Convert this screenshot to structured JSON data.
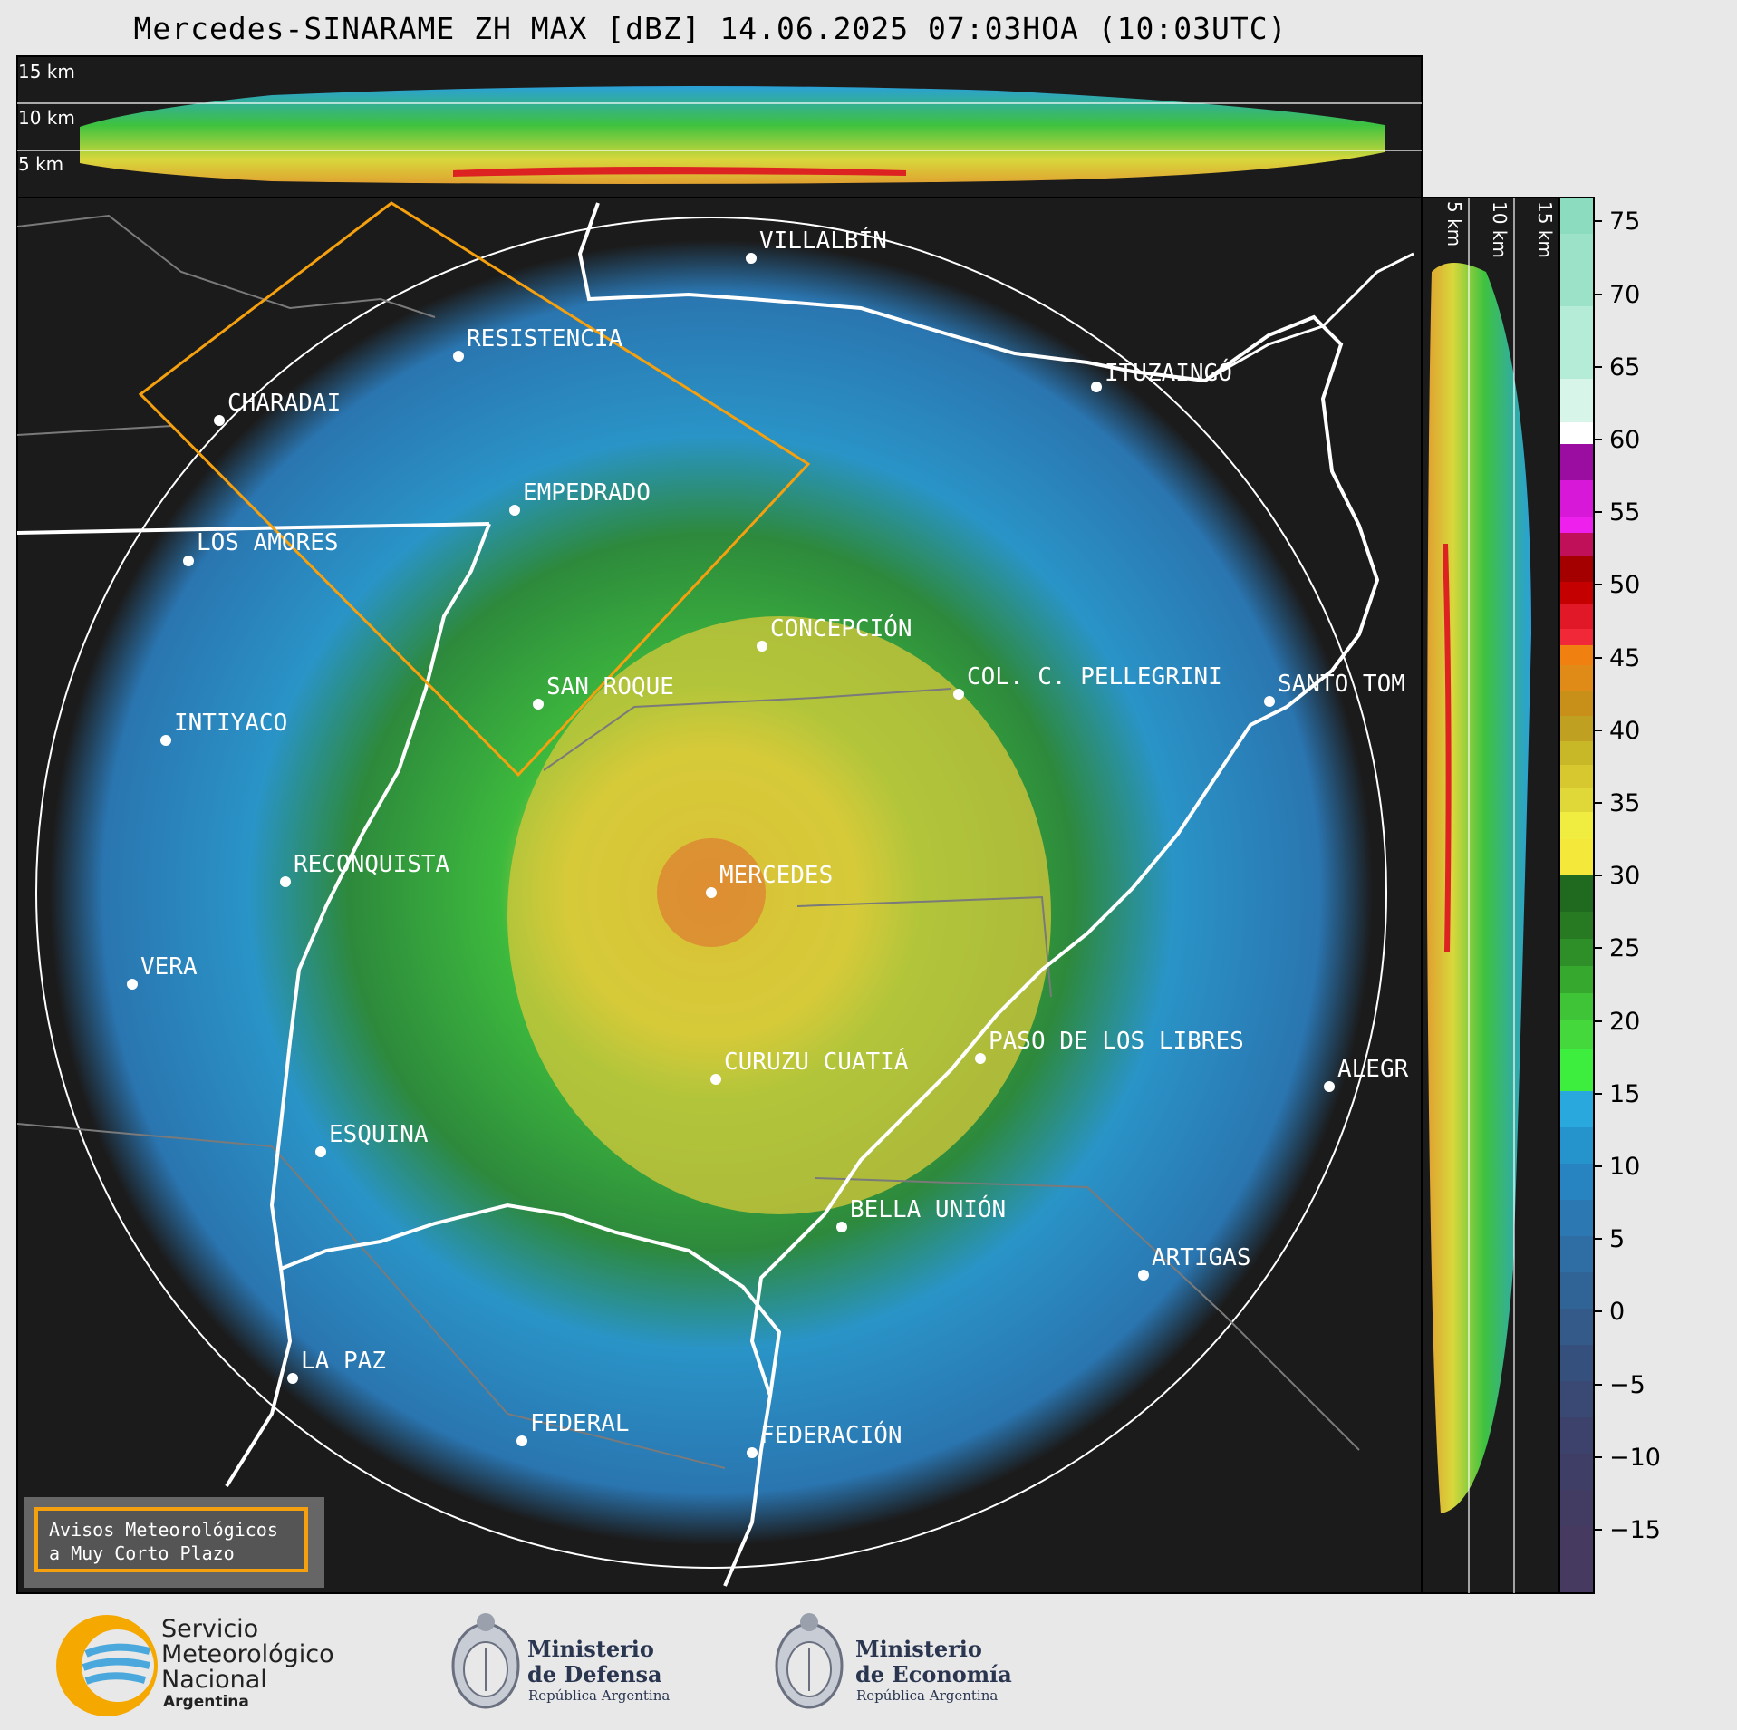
{
  "title": "Mercedes-SINARAME ZH MAX [dBZ] 14.06.2025 07:03HOA (10:03UTC)",
  "cross_sections": {
    "top_labels": [
      "15 km",
      "10 km",
      "5 km"
    ],
    "side_labels": [
      "5 km",
      "10 km",
      "15 km"
    ]
  },
  "cities": [
    {
      "name": "VILLALBÍN"
    },
    {
      "name": "RESISTENCIA"
    },
    {
      "name": "CHARADAI"
    },
    {
      "name": "ITUZAINGÓ"
    },
    {
      "name": "EMPEDRADO"
    },
    {
      "name": "LOS AMORES"
    },
    {
      "name": "CONCEPCIÓN"
    },
    {
      "name": "SAN ROQUE"
    },
    {
      "name": "COL. C. PELLEGRINI"
    },
    {
      "name": "SANTO TOM"
    },
    {
      "name": "INTIYACO"
    },
    {
      "name": "MERCEDES"
    },
    {
      "name": "RECONQUISTA"
    },
    {
      "name": "VERA"
    },
    {
      "name": "PASO DE LOS LIBRES"
    },
    {
      "name": "CURUZU CUATIÁ"
    },
    {
      "name": "ALEGR"
    },
    {
      "name": "ESQUINA"
    },
    {
      "name": "BELLA UNIÓN"
    },
    {
      "name": "ARTIGAS"
    },
    {
      "name": "LA PAZ"
    },
    {
      "name": "FEDERAL"
    },
    {
      "name": "FEDERACIÓN"
    }
  ],
  "colorbar": {
    "ticks": [
      "75",
      "70",
      "65",
      "60",
      "55",
      "50",
      "45",
      "40",
      "35",
      "30",
      "25",
      "20",
      "15",
      "10",
      "5",
      "0",
      "−5",
      "−10",
      "−15"
    ]
  },
  "warning_box": {
    "line1": "Avisos Meteorológicos",
    "line2": "a Muy Corto Plazo"
  },
  "logos": {
    "smn_line1": "Servicio",
    "smn_line2": "Meteorológico",
    "smn_line3": "Nacional",
    "smn_line4": "Argentina",
    "defensa_line1": "Ministerio",
    "defensa_line2": "de Defensa",
    "defensa_sub": "República Argentina",
    "economia_line1": "Ministerio",
    "economia_line2": "de Economía",
    "economia_sub": "República Argentina"
  },
  "colors": {
    "map_bg": "#1b1b1b",
    "warning_border": "#f5a00f",
    "polygon": "#f5a00f"
  }
}
